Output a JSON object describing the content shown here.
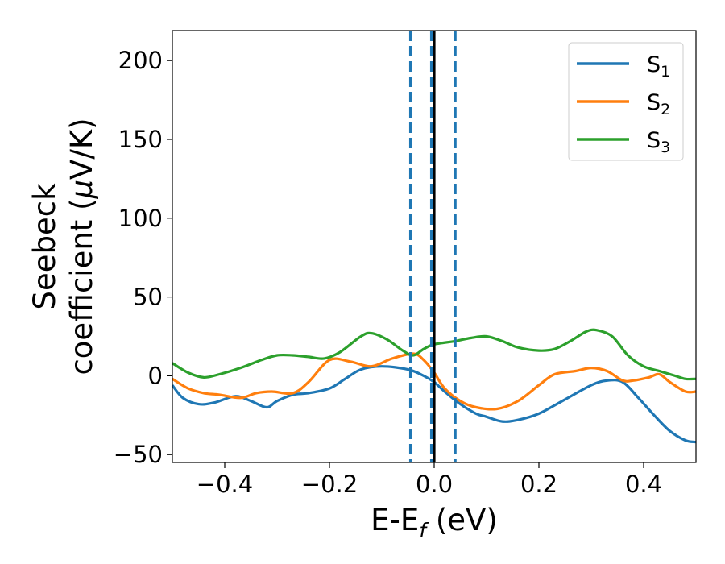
{
  "chart_data": {
    "type": "line",
    "xlabel": {
      "main": "E-E",
      "sub": "f",
      "tail": " (eV)"
    },
    "ylabel": {
      "line1": "Seebeck",
      "line2_pre": "coefficient  (",
      "mu": "μ",
      "line2_post": "V/K)"
    },
    "xlim": [
      -0.5,
      0.5
    ],
    "ylim": [
      -55,
      219
    ],
    "xticks": [
      -0.4,
      -0.2,
      0.0,
      0.2,
      0.4
    ],
    "xtick_labels": [
      "−0.4",
      "−0.2",
      "0.0",
      "0.2",
      "0.4"
    ],
    "yticks": [
      -50,
      0,
      50,
      100,
      150,
      200
    ],
    "ytick_labels": [
      "−50",
      "0",
      "50",
      "100",
      "150",
      "200"
    ],
    "grid": false,
    "legend_position": "top-right",
    "vlines": [
      {
        "x": -0.045,
        "style": "dashed",
        "color": "#1f77b4"
      },
      {
        "x": 0.04,
        "style": "dashed",
        "color": "#1f77b4"
      },
      {
        "x": -0.005,
        "style": "dashed",
        "color": "#1f77b4"
      },
      {
        "x": 0.0,
        "style": "solid",
        "color": "#000000"
      }
    ],
    "series": [
      {
        "name": "S",
        "sub": "1",
        "color": "#1f77b4",
        "points": [
          [
            -0.5,
            -6
          ],
          [
            -0.48,
            -14
          ],
          [
            -0.45,
            -18
          ],
          [
            -0.42,
            -17
          ],
          [
            -0.38,
            -13
          ],
          [
            -0.35,
            -16
          ],
          [
            -0.32,
            -20
          ],
          [
            -0.3,
            -16
          ],
          [
            -0.27,
            -12
          ],
          [
            -0.24,
            -11
          ],
          [
            -0.2,
            -8
          ],
          [
            -0.17,
            -2
          ],
          [
            -0.14,
            4
          ],
          [
            -0.1,
            6
          ],
          [
            -0.05,
            4
          ],
          [
            -0.02,
            0
          ],
          [
            0.0,
            -4
          ],
          [
            0.02,
            -10
          ],
          [
            0.05,
            -18
          ],
          [
            0.08,
            -24
          ],
          [
            0.1,
            -26
          ],
          [
            0.13,
            -29
          ],
          [
            0.16,
            -28
          ],
          [
            0.2,
            -24
          ],
          [
            0.25,
            -15
          ],
          [
            0.3,
            -6
          ],
          [
            0.33,
            -3
          ],
          [
            0.36,
            -4
          ],
          [
            0.39,
            -14
          ],
          [
            0.42,
            -25
          ],
          [
            0.45,
            -35
          ],
          [
            0.48,
            -41
          ],
          [
            0.5,
            -42
          ]
        ]
      },
      {
        "name": "S",
        "sub": "2",
        "color": "#ff7f0e",
        "points": [
          [
            -0.5,
            -2
          ],
          [
            -0.47,
            -8
          ],
          [
            -0.44,
            -11
          ],
          [
            -0.41,
            -12
          ],
          [
            -0.37,
            -14
          ],
          [
            -0.34,
            -11
          ],
          [
            -0.31,
            -10
          ],
          [
            -0.27,
            -11
          ],
          [
            -0.24,
            -4
          ],
          [
            -0.2,
            10
          ],
          [
            -0.16,
            9
          ],
          [
            -0.12,
            6
          ],
          [
            -0.08,
            11
          ],
          [
            -0.04,
            14
          ],
          [
            -0.02,
            10
          ],
          [
            0.0,
            2
          ],
          [
            0.02,
            -8
          ],
          [
            0.05,
            -16
          ],
          [
            0.08,
            -20
          ],
          [
            0.12,
            -21
          ],
          [
            0.16,
            -16
          ],
          [
            0.2,
            -6
          ],
          [
            0.23,
            1
          ],
          [
            0.27,
            3
          ],
          [
            0.3,
            5
          ],
          [
            0.33,
            3
          ],
          [
            0.36,
            -3
          ],
          [
            0.38,
            -3
          ],
          [
            0.41,
            -1
          ],
          [
            0.43,
            1
          ],
          [
            0.45,
            -4
          ],
          [
            0.48,
            -10
          ],
          [
            0.5,
            -10
          ]
        ]
      },
      {
        "name": "S",
        "sub": "3",
        "color": "#2ca02c",
        "points": [
          [
            -0.5,
            8
          ],
          [
            -0.47,
            2
          ],
          [
            -0.44,
            -1
          ],
          [
            -0.41,
            1
          ],
          [
            -0.37,
            5
          ],
          [
            -0.33,
            10
          ],
          [
            -0.3,
            13
          ],
          [
            -0.27,
            13
          ],
          [
            -0.24,
            12
          ],
          [
            -0.21,
            11
          ],
          [
            -0.18,
            15
          ],
          [
            -0.14,
            25
          ],
          [
            -0.12,
            27
          ],
          [
            -0.09,
            23
          ],
          [
            -0.06,
            16
          ],
          [
            -0.04,
            13
          ],
          [
            -0.02,
            17
          ],
          [
            0.0,
            20
          ],
          [
            0.04,
            22
          ],
          [
            0.07,
            24
          ],
          [
            0.1,
            25
          ],
          [
            0.13,
            22
          ],
          [
            0.16,
            18
          ],
          [
            0.2,
            16
          ],
          [
            0.23,
            17
          ],
          [
            0.26,
            22
          ],
          [
            0.29,
            28
          ],
          [
            0.31,
            29
          ],
          [
            0.34,
            25
          ],
          [
            0.37,
            13
          ],
          [
            0.4,
            6
          ],
          [
            0.43,
            3
          ],
          [
            0.46,
            0
          ],
          [
            0.48,
            -2
          ],
          [
            0.5,
            -2
          ]
        ]
      }
    ]
  }
}
